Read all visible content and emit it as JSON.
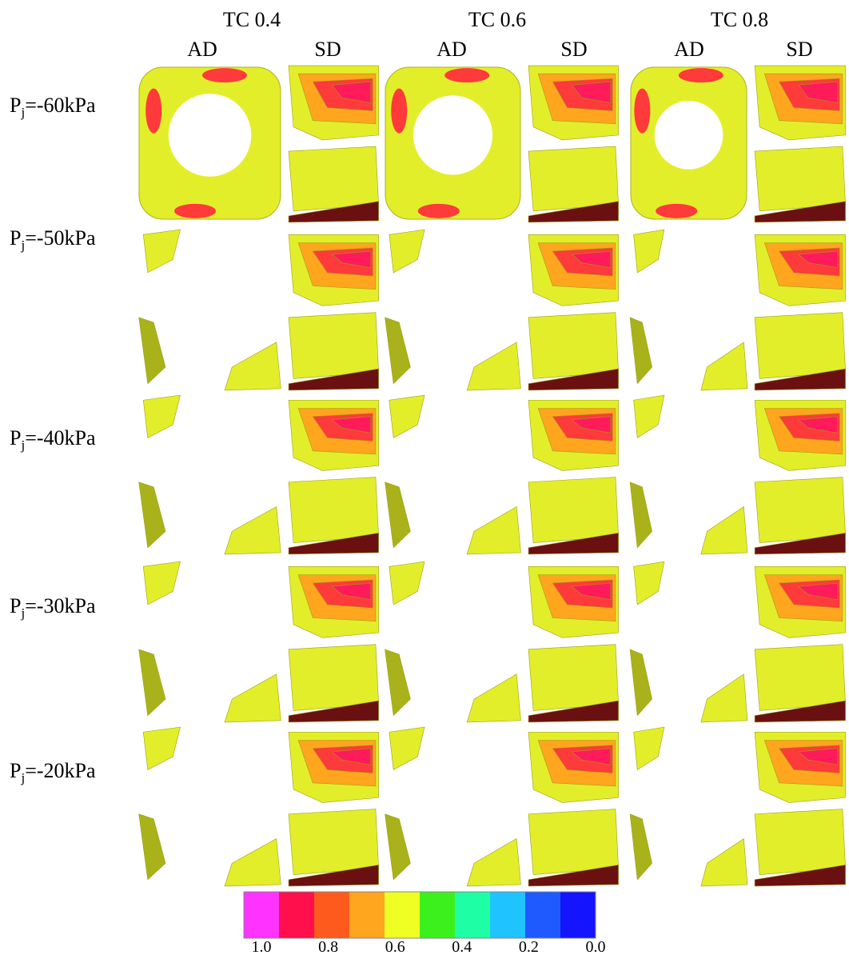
{
  "column_groups": [
    {
      "title": "TC 0.4",
      "columns": [
        "AD",
        "SD"
      ]
    },
    {
      "title": "TC 0.6",
      "columns": [
        "AD",
        "SD"
      ]
    },
    {
      "title": "TC 0.8",
      "columns": [
        "AD",
        "SD"
      ]
    }
  ],
  "rows": [
    {
      "label": {
        "base": "P",
        "sub": "j",
        "rest": "=-60kPa"
      }
    },
    {
      "label": {
        "base": "P",
        "sub": "j",
        "rest": "=-50kPa"
      }
    },
    {
      "label": {
        "base": "P",
        "sub": "j",
        "rest": "=-40kPa"
      }
    },
    {
      "label": {
        "base": "P",
        "sub": "j",
        "rest": "=-30kPa"
      }
    },
    {
      "label": {
        "base": "P",
        "sub": "j",
        "rest": "=-20kPa"
      }
    }
  ],
  "colorbar": {
    "colors": [
      "#ff33ff",
      "#ff0f4b",
      "#ff5a1e",
      "#ffa51e",
      "#f0ff23",
      "#3cf01e",
      "#1effa5",
      "#1ec3ff",
      "#1e5aff",
      "#1414ff"
    ],
    "lim": [
      1.0,
      0.0
    ],
    "ticks": [
      {
        "value": 1.0,
        "label": "1.0"
      },
      {
        "value": 0.8,
        "label": "0.8"
      },
      {
        "value": 0.6,
        "label": "0.6"
      },
      {
        "value": 0.4,
        "label": "0.4"
      },
      {
        "value": 0.2,
        "label": "0.2"
      },
      {
        "value": 0.0,
        "label": "0.0"
      }
    ]
  }
}
